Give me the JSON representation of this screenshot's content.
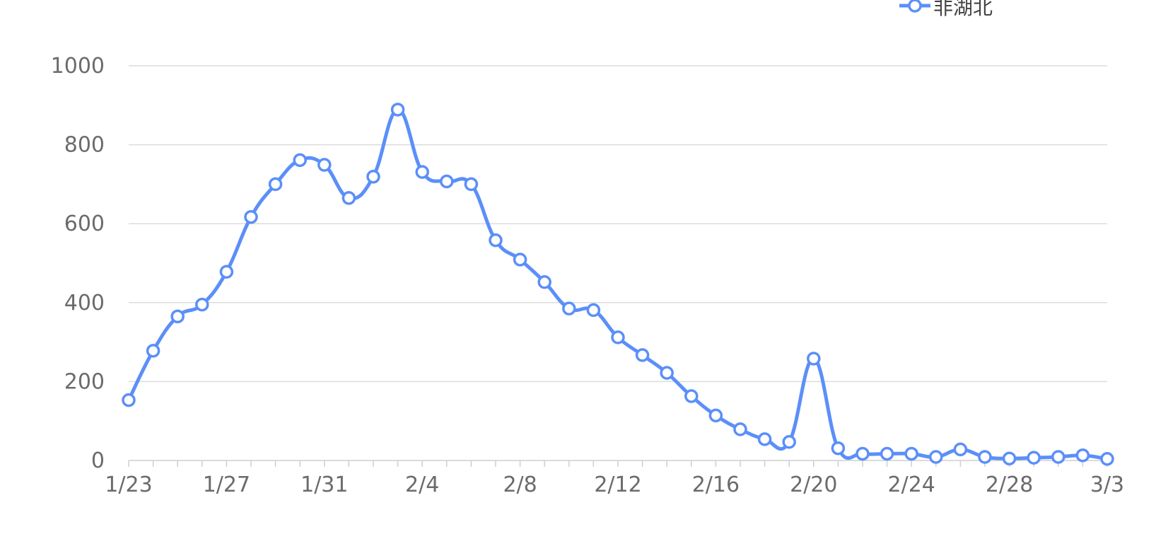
{
  "chart_data": {
    "type": "line",
    "title": "",
    "xlabel": "",
    "ylabel": "",
    "ylim": [
      0,
      1000
    ],
    "yticks": [
      0,
      200,
      400,
      600,
      800,
      1000
    ],
    "grid": true,
    "legend_position": "top-right",
    "color": "#5b8ff9",
    "categories": [
      "1/23",
      "1/24",
      "1/25",
      "1/26",
      "1/27",
      "1/28",
      "1/29",
      "1/30",
      "1/31",
      "2/1",
      "2/2",
      "2/3",
      "2/4",
      "2/5",
      "2/6",
      "2/7",
      "2/8",
      "2/9",
      "2/10",
      "2/11",
      "2/12",
      "2/13",
      "2/14",
      "2/15",
      "2/16",
      "2/17",
      "2/18",
      "2/19",
      "2/20",
      "2/21",
      "2/22",
      "2/23",
      "2/24",
      "2/25",
      "2/26",
      "2/27",
      "2/28",
      "2/29",
      "3/1",
      "3/2",
      "3/3"
    ],
    "x_tick_labels": [
      "1/23",
      "1/27",
      "1/31",
      "2/4",
      "2/8",
      "2/12",
      "2/16",
      "2/20",
      "2/24",
      "2/28",
      "3/3"
    ],
    "series": [
      {
        "name": "非湖北",
        "values": [
          153,
          278,
          365,
          395,
          478,
          617,
          700,
          761,
          749,
          665,
          719,
          889,
          731,
          707,
          700,
          558,
          509,
          452,
          385,
          381,
          312,
          267,
          222,
          163,
          114,
          79,
          54,
          47,
          258,
          31,
          17,
          17,
          17,
          9,
          28,
          9,
          5,
          7,
          9,
          13,
          4
        ]
      }
    ]
  }
}
